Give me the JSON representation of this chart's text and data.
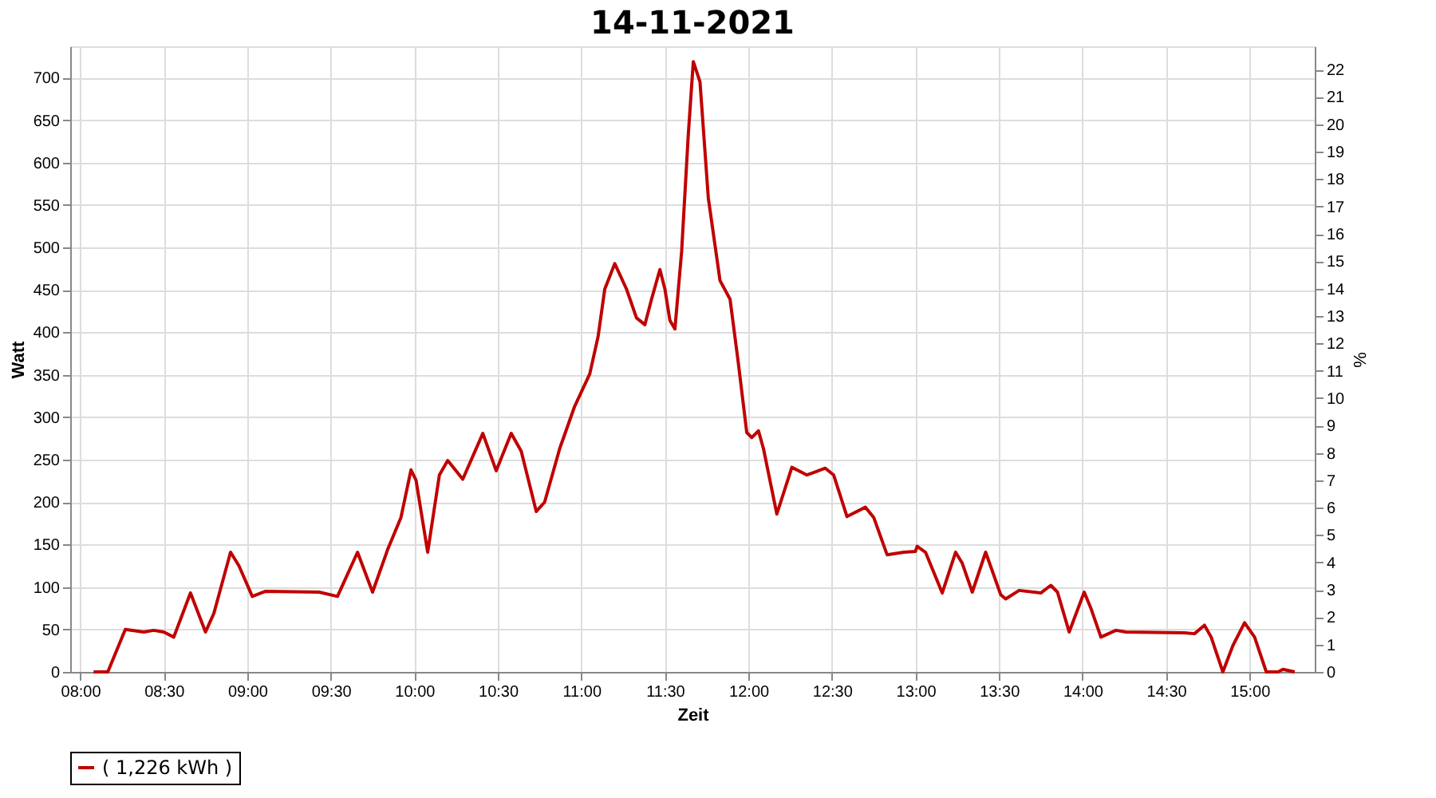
{
  "chart_data": {
    "type": "line",
    "title": "14-11-2021",
    "xlabel": "Zeit",
    "ylabel": "Watt",
    "y2label": "%",
    "xlim": [
      7.94,
      15.39
    ],
    "xticks": [
      {
        "value": 8,
        "label": "08:00"
      },
      {
        "value": 8.5,
        "label": "08:30"
      },
      {
        "value": 9,
        "label": "09:00"
      },
      {
        "value": 9.5,
        "label": "09:30"
      },
      {
        "value": 10,
        "label": "10:00"
      },
      {
        "value": 10.5,
        "label": "10:30"
      },
      {
        "value": 11,
        "label": "11:00"
      },
      {
        "value": 11.5,
        "label": "11:30"
      },
      {
        "value": 12,
        "label": "12:00"
      },
      {
        "value": 12.5,
        "label": "12:30"
      },
      {
        "value": 13,
        "label": "13:00"
      },
      {
        "value": 13.5,
        "label": "13:30"
      },
      {
        "value": 14,
        "label": "14:00"
      },
      {
        "value": 14.5,
        "label": "14:30"
      },
      {
        "value": 15,
        "label": "15:00"
      }
    ],
    "ylim": [
      0,
      737
    ],
    "yticks": [
      0,
      50,
      100,
      150,
      200,
      250,
      300,
      350,
      400,
      450,
      500,
      550,
      600,
      650,
      700
    ],
    "y2lim": [
      0,
      22.85
    ],
    "y2ticks": [
      0,
      1,
      2,
      3,
      4,
      5,
      6,
      7,
      8,
      9,
      10,
      11,
      12,
      13,
      14,
      15,
      16,
      17,
      18,
      19,
      20,
      21,
      22
    ],
    "grid": true,
    "legend": "bottom",
    "marker": "none",
    "line_style": "solid",
    "x": [
      8.08,
      8.165,
      8.27,
      8.38,
      8.44,
      8.5,
      8.56,
      8.66,
      8.75,
      8.8,
      8.9,
      8.95,
      9.03,
      9.11,
      9.43,
      9.54,
      9.66,
      9.75,
      9.84,
      9.92,
      9.98,
      10.01,
      10.08,
      10.15,
      10.2,
      10.29,
      10.41,
      10.49,
      10.58,
      10.64,
      10.73,
      10.78,
      10.87,
      10.96,
      11.05,
      11.1,
      11.14,
      11.2,
      11.27,
      11.33,
      11.38,
      11.42,
      11.47,
      11.5,
      11.53,
      11.56,
      11.6,
      11.64,
      11.67,
      11.71,
      11.76,
      11.83,
      11.89,
      11.94,
      11.99,
      12.02,
      12.06,
      12.09,
      12.17,
      12.26,
      12.35,
      12.46,
      12.51,
      12.59,
      12.7,
      12.75,
      12.83,
      12.93,
      13.0,
      13.01,
      13.06,
      13.16,
      13.24,
      13.28,
      13.34,
      13.42,
      13.51,
      13.54,
      13.62,
      13.75,
      13.81,
      13.85,
      13.92,
      14.01,
      14.05,
      14.11,
      14.2,
      14.26,
      14.61,
      14.67,
      14.73,
      14.77,
      14.84,
      14.9,
      14.97,
      15.03,
      15.1,
      15.17,
      15.2,
      15.27
    ],
    "series": [
      {
        "name": "( 1,226 kWh )",
        "color": "#c00000",
        "values": [
          0,
          0,
          50,
          47,
          49,
          47,
          41,
          93,
          47,
          69,
          141,
          125,
          89,
          95,
          94,
          89,
          141,
          94,
          144,
          182,
          238,
          226,
          141,
          232,
          249,
          227,
          281,
          237,
          281,
          260,
          189,
          200,
          263,
          313,
          351,
          395,
          451,
          481,
          451,
          417,
          409,
          439,
          474,
          451,
          414,
          404,
          495,
          633,
          719,
          695,
          558,
          461,
          439,
          363,
          282,
          276,
          284,
          263,
          186,
          241,
          232,
          240,
          232,
          183,
          194,
          182,
          138,
          141,
          142,
          148,
          141,
          93,
          141,
          128,
          94,
          141,
          91,
          86,
          96,
          93,
          102,
          94,
          47,
          94,
          75,
          41,
          49,
          47,
          46,
          45,
          55,
          41,
          0,
          31,
          58,
          41,
          0,
          0,
          3,
          0
        ]
      }
    ]
  }
}
